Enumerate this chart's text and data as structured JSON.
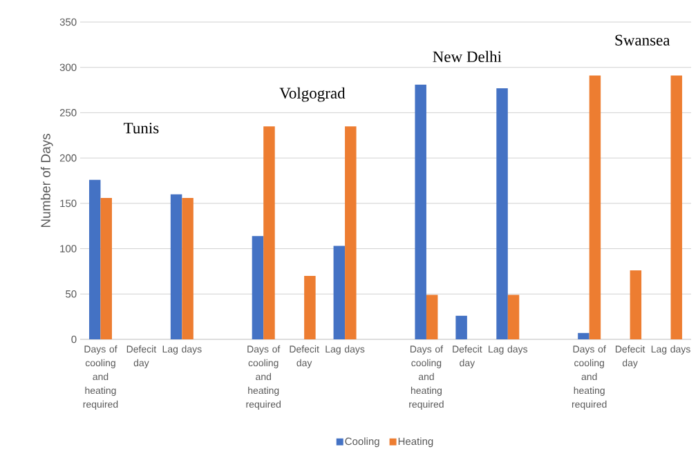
{
  "chart_data": {
    "type": "bar",
    "ylabel": "Number of Days",
    "categories": [
      "Days of cooling and heating required",
      "Defecit day",
      "Lag days",
      null,
      "Days of cooling and heating required",
      "Defecit day",
      "Lag days",
      null,
      "Days of cooling and heating required",
      "Defecit day",
      "Lag days",
      null,
      "Days of cooling and heating required",
      "Defecit day",
      "Lag days"
    ],
    "series": [
      {
        "name": "Cooling",
        "color": "#4472c4",
        "values": [
          176,
          null,
          160,
          null,
          114,
          null,
          103,
          null,
          281,
          26,
          277,
          null,
          7,
          null,
          null
        ]
      },
      {
        "name": "Heating",
        "color": "#ed7d31",
        "values": [
          156,
          null,
          156,
          null,
          235,
          70,
          235,
          null,
          49,
          null,
          49,
          null,
          291,
          76,
          291
        ]
      }
    ],
    "ylim": [
      0,
      350
    ],
    "yticks": [
      0,
      50,
      100,
      150,
      200,
      250,
      300,
      350
    ],
    "grid": "y",
    "legend": "bottom",
    "annotations": [
      "Tunis",
      "Volgograd",
      "New Delhi",
      "Swansea"
    ]
  }
}
